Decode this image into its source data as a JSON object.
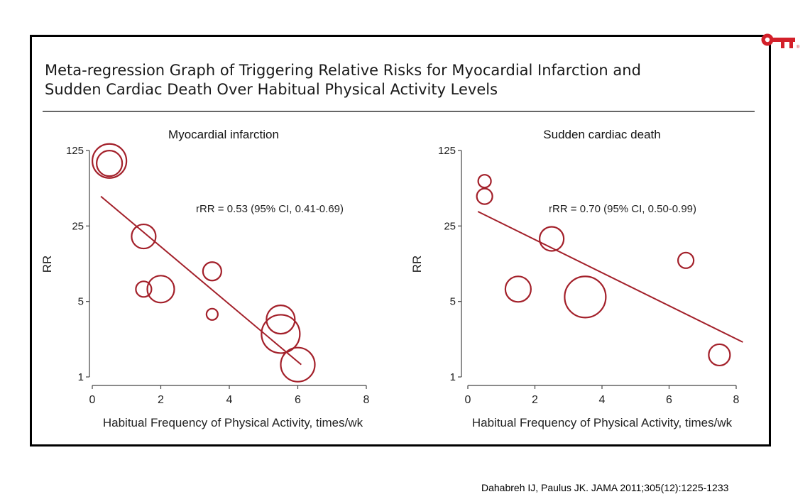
{
  "title_line1": "Meta-regression Graph of Triggering Relative Risks for Myocardial Infarction and",
  "title_line2": "Sudden Cardiac Death Over Habitual Physical Activity Levels",
  "citation": "Dahabreh IJ, Paulus JK. JAMA 2011;305(12):1225-1233",
  "logo_icon": "key-logo-icon",
  "colors": {
    "marker": "#a3202a",
    "axis": "#444444",
    "logo": "#d3202a"
  },
  "chart_data": [
    {
      "type": "scatter",
      "title": "Myocardial infarction",
      "xlabel": "Habitual Frequency of Physical Activity, times/wk",
      "ylabel": "RR",
      "xlim": [
        0,
        8
      ],
      "ylim": [
        1,
        125
      ],
      "yscale": "log",
      "xticks": [
        0,
        2,
        4,
        6,
        8
      ],
      "yticks": [
        1,
        5,
        25,
        125
      ],
      "annotation": "rRR = 0.53 (95% CI, 0.41-0.69)",
      "points": [
        {
          "x": 0.5,
          "y": 100,
          "weight": 24
        },
        {
          "x": 0.5,
          "y": 95,
          "weight": 18
        },
        {
          "x": 1.5,
          "y": 20,
          "weight": 17
        },
        {
          "x": 1.5,
          "y": 6.5,
          "weight": 11
        },
        {
          "x": 2.0,
          "y": 6.5,
          "weight": 19
        },
        {
          "x": 3.5,
          "y": 9.5,
          "weight": 13
        },
        {
          "x": 3.5,
          "y": 3.8,
          "weight": 8
        },
        {
          "x": 5.5,
          "y": 3.4,
          "weight": 20
        },
        {
          "x": 5.5,
          "y": 2.5,
          "weight": 27
        },
        {
          "x": 6.0,
          "y": 1.3,
          "weight": 24
        }
      ],
      "fit_line": {
        "x": [
          0.25,
          6.1
        ],
        "y": [
          47,
          1.3
        ]
      }
    },
    {
      "type": "scatter",
      "title": "Sudden cardiac death",
      "xlabel": "Habitual Frequency of Physical Activity, times/wk",
      "ylabel": "RR",
      "xlim": [
        0,
        8
      ],
      "ylim": [
        1,
        125
      ],
      "yscale": "log",
      "xticks": [
        0,
        2,
        4,
        6,
        8
      ],
      "yticks": [
        1,
        5,
        25,
        125
      ],
      "annotation": "rRR = 0.70 (95% CI, 0.50-0.99)",
      "points": [
        {
          "x": 0.5,
          "y": 65,
          "weight": 9
        },
        {
          "x": 0.5,
          "y": 47,
          "weight": 11
        },
        {
          "x": 2.5,
          "y": 19,
          "weight": 17
        },
        {
          "x": 1.5,
          "y": 6.5,
          "weight": 18
        },
        {
          "x": 3.5,
          "y": 5.5,
          "weight": 29
        },
        {
          "x": 6.5,
          "y": 12,
          "weight": 11
        },
        {
          "x": 7.5,
          "y": 1.6,
          "weight": 15
        }
      ],
      "fit_line": {
        "x": [
          0.3,
          8.2
        ],
        "y": [
          34,
          2.1
        ]
      }
    }
  ]
}
